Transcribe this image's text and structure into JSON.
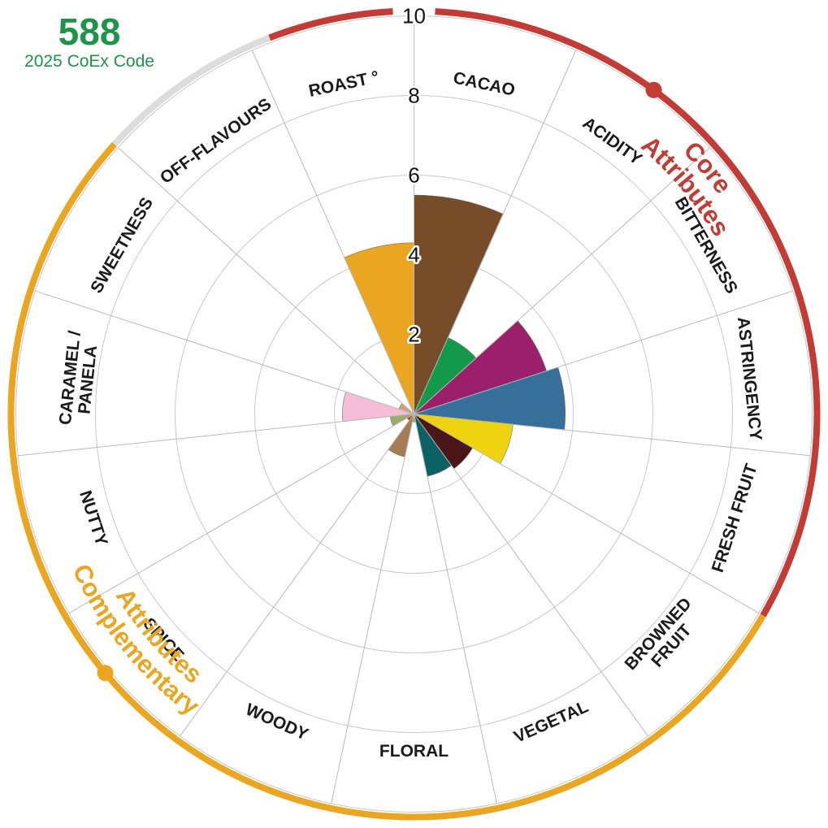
{
  "sample": {
    "code": "588",
    "code_label": "2025 CoEx Code",
    "color": "#1e9448"
  },
  "chart_data": {
    "type": "polar-bar",
    "rmax": 10,
    "ticks": [
      2,
      4,
      6,
      8,
      10
    ],
    "categories": [
      "CACAO",
      "ACIDITY",
      "BITTERNESS",
      "ASTRINGENCY",
      "FRESH FRUIT",
      "BROWNED FRUIT",
      "VEGETAL",
      "FLORAL",
      "WOODY",
      "SPICE",
      "NUTTY",
      "CARAMEL / PANELA",
      "SWEETNESS",
      "OFF-FLAVOURS",
      "ROAST °"
    ],
    "values": [
      5.5,
      2.1,
      3.5,
      3.8,
      2.5,
      1.7,
      1.6,
      0.2,
      1.1,
      0.2,
      0.6,
      1.8,
      0.4,
      0.0,
      4.3
    ],
    "colors": [
      "#774c28",
      "#129a4a",
      "#9c1f6b",
      "#356f9a",
      "#eed410",
      "#4b1617",
      "#0b6163",
      "#8fbd44",
      "#a67c52",
      "#c52a2c",
      "#9ea96b",
      "#f5bcd6",
      "#d1a07a",
      "#cccccc",
      "#eaa621"
    ],
    "groups": [
      {
        "label_line1": "Core",
        "label_line2": "Attributes",
        "color": "#c33b35"
      },
      {
        "label_line1": "Complementary",
        "label_line2": "Attributes",
        "color": "#eaa621"
      },
      {
        "color": "#dcdcdc"
      }
    ]
  }
}
